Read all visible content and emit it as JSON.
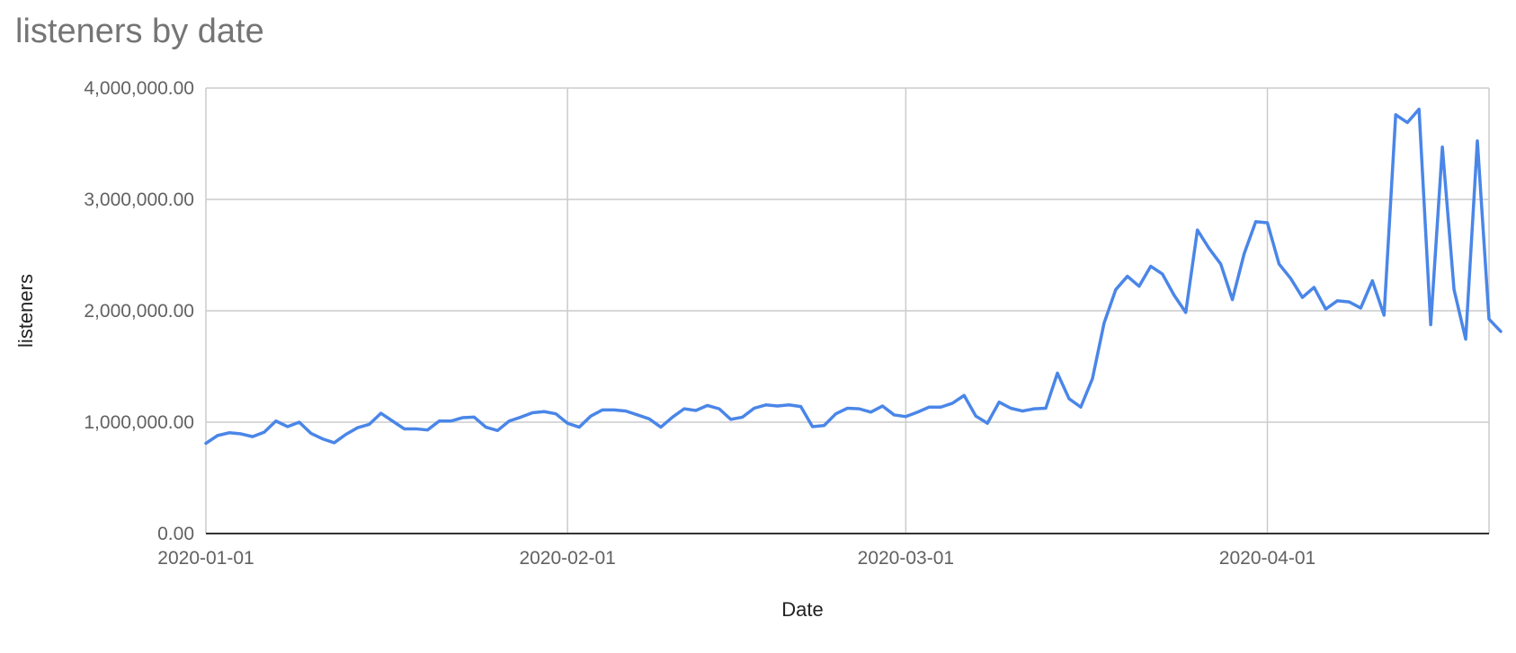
{
  "chart_data": {
    "type": "line",
    "title": "listeners by date",
    "xlabel": "Date",
    "ylabel": "listeners",
    "x_start": "2020-01-01",
    "x_end": "2020-04-20",
    "x_ticks": [
      "2020-01-01",
      "2020-02-01",
      "2020-03-01",
      "2020-04-01"
    ],
    "ylim": [
      0,
      4000000
    ],
    "y_ticks": [
      "0.00",
      "1,000,000.00",
      "2,000,000.00",
      "3,000,000.00",
      "4,000,000.00"
    ],
    "grid": true,
    "legend": "none",
    "series": [
      {
        "color": "#4a86e8",
        "values": [
          810000,
          880000,
          905000,
          895000,
          870000,
          910000,
          1010000,
          960000,
          1000000,
          900000,
          850000,
          815000,
          890000,
          950000,
          980000,
          1080000,
          1010000,
          940000,
          940000,
          930000,
          1010000,
          1010000,
          1040000,
          1045000,
          955000,
          925000,
          1010000,
          1045000,
          1085000,
          1095000,
          1075000,
          990000,
          955000,
          1055000,
          1110000,
          1110000,
          1100000,
          1065000,
          1030000,
          955000,
          1045000,
          1120000,
          1105000,
          1150000,
          1120000,
          1025000,
          1045000,
          1125000,
          1155000,
          1145000,
          1155000,
          1140000,
          960000,
          970000,
          1075000,
          1125000,
          1120000,
          1090000,
          1145000,
          1065000,
          1050000,
          1090000,
          1135000,
          1135000,
          1170000,
          1240000,
          1055000,
          990000,
          1180000,
          1125000,
          1100000,
          1120000,
          1125000,
          1440000,
          1210000,
          1135000,
          1390000,
          1890000,
          2190000,
          2310000,
          2220000,
          2400000,
          2330000,
          2140000,
          1985000,
          2725000,
          2560000,
          2420000,
          2100000,
          2510000,
          2800000,
          2790000,
          2420000,
          2290000,
          2120000,
          2210000,
          2015000,
          2090000,
          2080000,
          2025000,
          2270000,
          1960000,
          3760000,
          3690000,
          3810000,
          1875000,
          3470000,
          2190000,
          1745000,
          3525000,
          1925000,
          1815000
        ]
      }
    ]
  }
}
